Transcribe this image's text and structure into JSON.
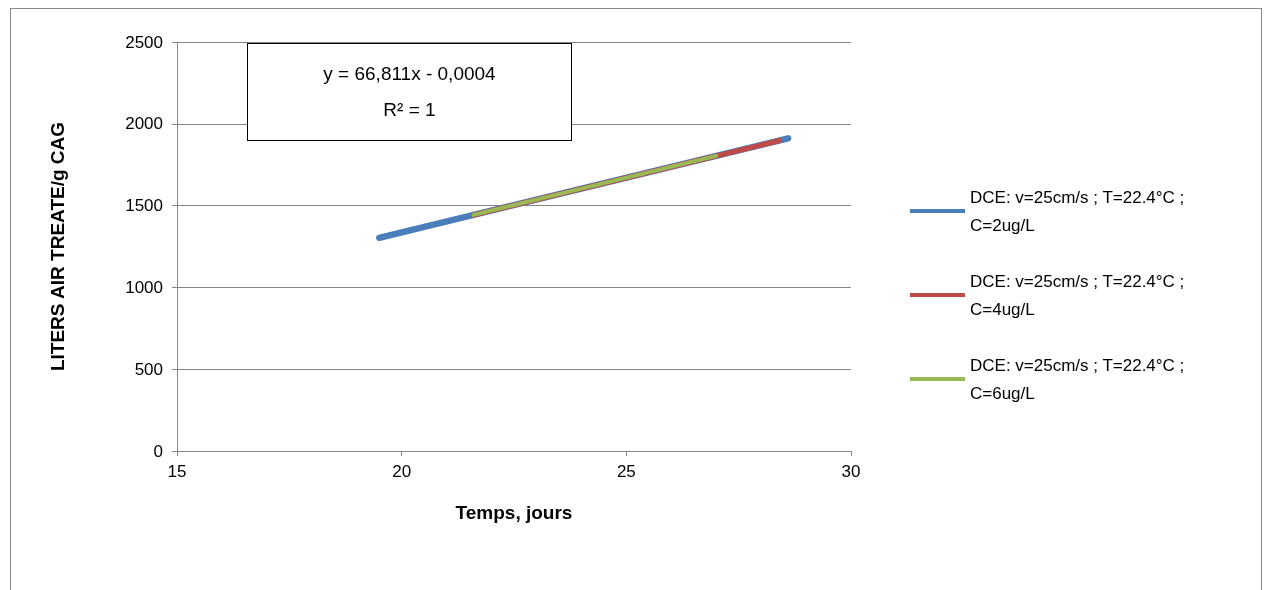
{
  "chart_data": {
    "type": "line",
    "xlabel": "Temps, jours",
    "ylabel": "LITERS AIR TREATE/g CAG",
    "annotations": [
      "y = 66,811x - 0,0004",
      "R² = 1"
    ],
    "series": [
      {
        "name": "DCE: v=25cm/s ; T=22.4°C ; C=2ug/L",
        "color": "#4a7ebb",
        "x": [
          19.5,
          28.6
        ],
        "values": [
          1303,
          1911
        ]
      },
      {
        "name": "DCE: v=25cm/s ; T=22.4°C ; C=4ug/L",
        "color": "#be4b48",
        "x": [
          21.6,
          28.4
        ],
        "values": [
          1443,
          1897
        ]
      },
      {
        "name": "DCE: v=25cm/s ; T=22.4°C ; C=6ug/L",
        "color": "#98b954",
        "x": [
          21.6,
          27.0
        ],
        "values": [
          1443,
          1804
        ]
      }
    ],
    "xlim": [
      15,
      30
    ],
    "xticks": [
      15,
      20,
      25,
      30
    ],
    "ylim": [
      0,
      2500
    ],
    "yticks": [
      0,
      500,
      1000,
      1500,
      2000,
      2500
    ],
    "grid": "y",
    "legend": "right",
    "marker": "none",
    "line_style": "solid"
  }
}
